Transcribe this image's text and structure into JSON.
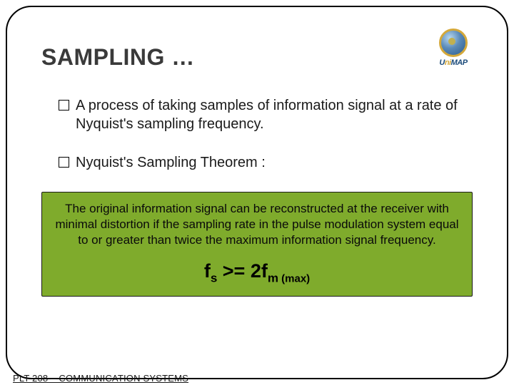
{
  "logo": {
    "text_left": "U",
    "text_mid": "ni",
    "text_right": "MAP"
  },
  "title": "SAMPLING …",
  "bullets": [
    "A process of taking samples of information signal at a rate of Nyquist's sampling frequency.",
    "Nyquist's Sampling Theorem :"
  ],
  "theorem": {
    "text": "The original information signal can be reconstructed at the receiver with minimal distortion if the sampling rate in the pulse modulation system equal to or greater than twice the maximum information signal frequency.",
    "formula": {
      "lhs_sym": "f",
      "lhs_sub": "s",
      "op": " >= ",
      "rhs_coef": "2",
      "rhs_sym": "f",
      "rhs_sub": "m",
      "rhs_paren": " (max)"
    },
    "bg_color": "#7FAB2C",
    "border_color": "#1a1a1a"
  },
  "footer": "PLT 208 – COMMUNICATION SYSTEMS",
  "colors": {
    "title": "#3a3a3a",
    "body_text": "#1a1a1a",
    "slide_border": "#000000",
    "background": "#ffffff"
  },
  "fonts": {
    "title_size_pt": 32,
    "bullet_size_pt": 20,
    "theorem_size_pt": 17,
    "formula_size_pt": 27,
    "footer_size_pt": 13
  }
}
